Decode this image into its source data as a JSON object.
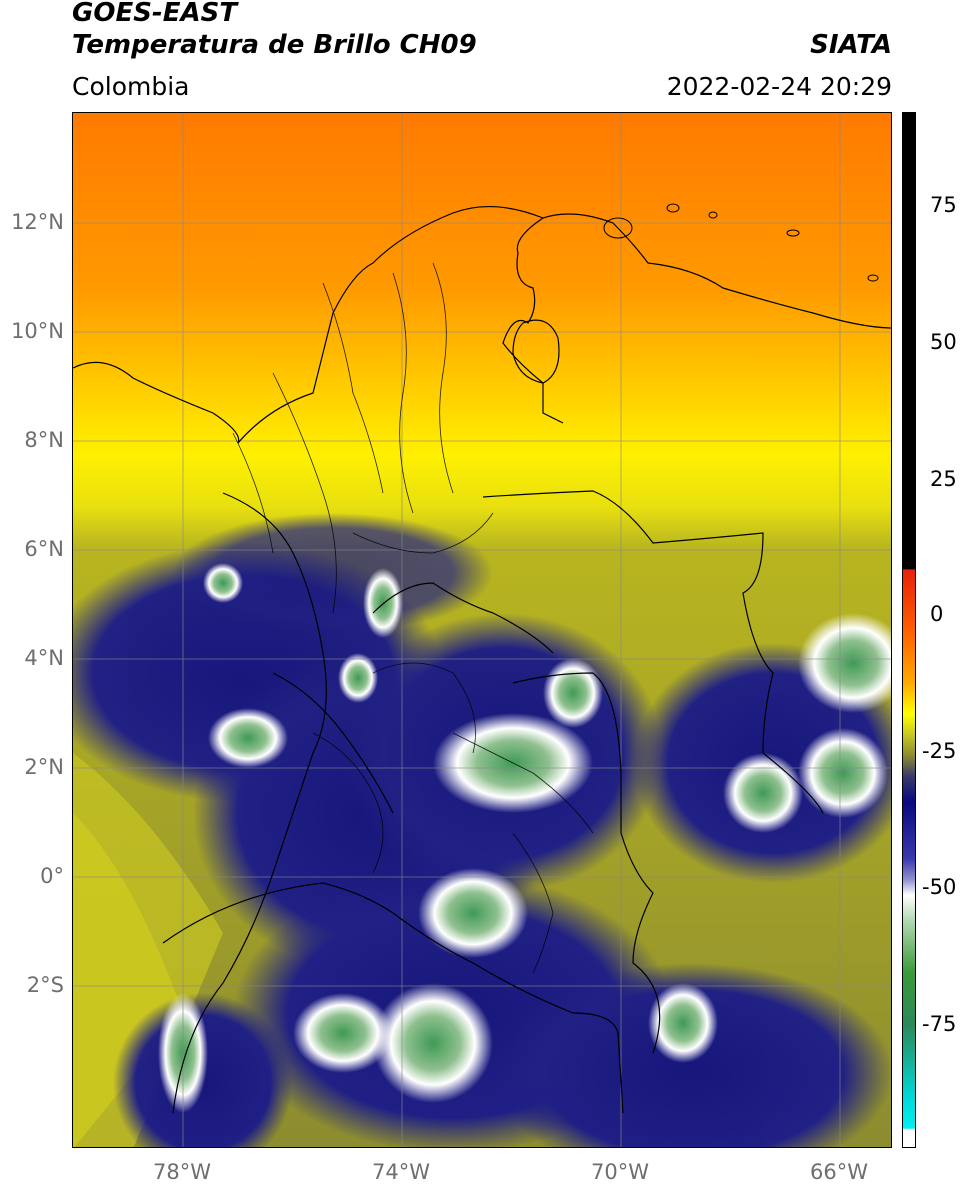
{
  "header": {
    "satellite": "GOES-EAST",
    "product": "Temperatura de Brillo CH09",
    "region": "Colombia",
    "agency": "SIATA",
    "timestamp": "2022-02-24 20:29"
  },
  "map": {
    "lat_ticks": [
      "12°N",
      "10°N",
      "8°N",
      "6°N",
      "4°N",
      "2°N",
      "0°",
      "2°S"
    ],
    "lon_ticks": [
      "78°W",
      "74°W",
      "70°W",
      "66°W"
    ],
    "grid": true
  },
  "colorbar": {
    "tick_labels": [
      "75",
      "50",
      "25",
      "0",
      "-25",
      "-50",
      "-75"
    ],
    "palette": {
      "black": "#000000",
      "red": "#e8200a",
      "orange": "#ff8c00",
      "yellow": "#ffff00",
      "olive": "#9a9a1a",
      "navy": "#0a0a80",
      "white": "#ffffff",
      "green": "#3a9a3a",
      "cyan": "#00e0e0"
    }
  },
  "legend_icons": [
    "colorbar-icon"
  ]
}
